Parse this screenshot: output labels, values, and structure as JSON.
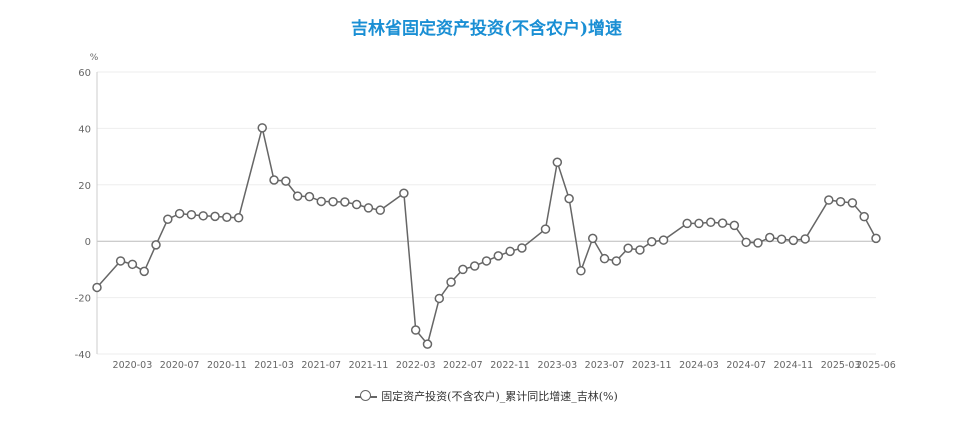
{
  "colors": {
    "title": "#1a8fd4",
    "line": "#666666",
    "grid": "#eeeeee",
    "axis_text": "#666666"
  },
  "chart_data": {
    "type": "line",
    "title": "吉林省固定资产投资(不含农户)增速",
    "ylabel": "%",
    "ylim": [
      -40,
      60
    ],
    "yticks": [
      -40,
      -20,
      0,
      20,
      40,
      60
    ],
    "grid": true,
    "legend_position": "bottom-center",
    "xticks": [
      "2020-03",
      "2020-07",
      "2020-11",
      "2021-03",
      "2021-07",
      "2021-11",
      "2022-03",
      "2022-07",
      "2022-11",
      "2023-03",
      "2023-07",
      "2023-11",
      "2024-03",
      "2024-07",
      "2024-11",
      "2025-03",
      "2025-06"
    ],
    "x": [
      "2019-12",
      "2020-02",
      "2020-03",
      "2020-04",
      "2020-05",
      "2020-06",
      "2020-07",
      "2020-08",
      "2020-09",
      "2020-10",
      "2020-11",
      "2020-12",
      "2021-02",
      "2021-03",
      "2021-04",
      "2021-05",
      "2021-06",
      "2021-07",
      "2021-08",
      "2021-09",
      "2021-10",
      "2021-11",
      "2021-12",
      "2022-02",
      "2022-03",
      "2022-04",
      "2022-05",
      "2022-06",
      "2022-07",
      "2022-08",
      "2022-09",
      "2022-10",
      "2022-11",
      "2022-12",
      "2023-02",
      "2023-03",
      "2023-04",
      "2023-05",
      "2023-06",
      "2023-07",
      "2023-08",
      "2023-09",
      "2023-10",
      "2023-11",
      "2023-12",
      "2024-02",
      "2024-03",
      "2024-04",
      "2024-05",
      "2024-06",
      "2024-07",
      "2024-08",
      "2024-09",
      "2024-10",
      "2024-11",
      "2024-12",
      "2025-02",
      "2025-03",
      "2025-04",
      "2025-05",
      "2025-06"
    ],
    "series": [
      {
        "name": "固定资产投资(不含农户)_累计同比增速_吉林(%)",
        "values": [
          -16.4,
          -7.0,
          -8.2,
          -10.7,
          -1.3,
          7.8,
          9.8,
          9.4,
          9.0,
          8.8,
          8.5,
          8.3,
          40.2,
          21.7,
          21.3,
          16.0,
          15.8,
          14.1,
          14.0,
          13.9,
          13.0,
          11.8,
          11.0,
          17.0,
          -31.5,
          -36.5,
          -20.3,
          -14.5,
          -10.0,
          -8.8,
          -7.0,
          -5.2,
          -3.6,
          -2.4,
          4.3,
          28.0,
          15.1,
          -10.5,
          1.0,
          -6.2,
          -7.0,
          -2.5,
          -3.1,
          -0.2,
          0.4,
          6.3,
          6.3,
          6.7,
          6.4,
          5.6,
          -0.4,
          -0.6,
          1.3,
          0.7,
          0.3,
          0.8,
          14.6,
          14.0,
          13.6,
          8.7,
          1.0
        ]
      }
    ]
  }
}
